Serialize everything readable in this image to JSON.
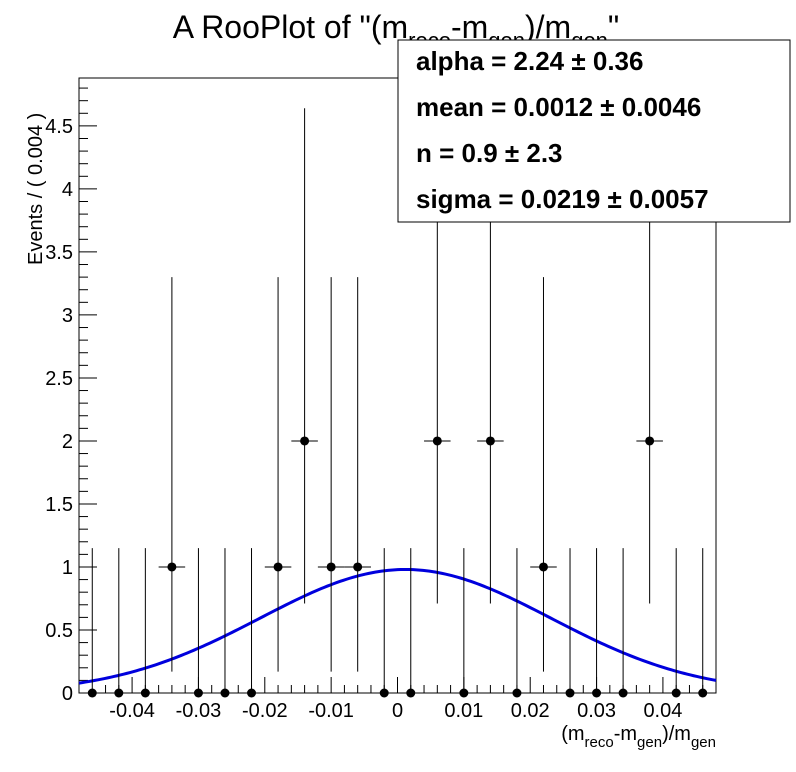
{
  "chart_data": {
    "type": "scatter",
    "title": "A RooPlot of \"(m_reco-m_gen)/m_gen\"",
    "title_parts": {
      "pre": "A RooPlot of \"(m",
      "s1": "reco",
      "mid": "-m",
      "s2": "gen",
      "post": ")/m",
      "s3": "gen",
      "end": "\""
    },
    "xlabel_parts": {
      "pre": "(m",
      "s1": "reco",
      "mid": "-m",
      "s2": "gen",
      "post": ")/m",
      "s3": "gen"
    },
    "ylabel": "Events / ( 0.004 )",
    "xlim": [
      -0.048,
      0.048
    ],
    "ylim": [
      0,
      4.88
    ],
    "xticks": [
      -0.04,
      -0.03,
      -0.02,
      -0.01,
      0,
      0.01,
      0.02,
      0.03,
      0.04
    ],
    "xtick_labels": [
      "-0.04",
      "-0.03",
      "-0.02",
      "-0.01",
      "0",
      "0.01",
      "0.02",
      "0.03",
      "0.04"
    ],
    "yticks": [
      0,
      0.5,
      1,
      1.5,
      2,
      2.5,
      3,
      3.5,
      4,
      4.5
    ],
    "ytick_labels": [
      "0",
      "0.5",
      "1",
      "1.5",
      "2",
      "2.5",
      "3",
      "3.5",
      "4",
      "4.5"
    ],
    "series": [
      {
        "kind": "points",
        "color": "#000000",
        "bin_half_width": 0.002,
        "x": [
          -0.046,
          -0.042,
          -0.038,
          -0.034,
          -0.03,
          -0.026,
          -0.022,
          -0.018,
          -0.014,
          -0.01,
          -0.006,
          -0.002,
          0.002,
          0.006,
          0.01,
          0.014,
          0.018,
          0.022,
          0.026,
          0.03,
          0.034,
          0.038,
          0.042,
          0.046
        ],
        "y": [
          0,
          0,
          0,
          1,
          0,
          0,
          0,
          1,
          2,
          1,
          1,
          0,
          0,
          2,
          0,
          2,
          0,
          1,
          0,
          0,
          0,
          2,
          0,
          0
        ],
        "err_low": [
          0,
          0,
          0,
          0.83,
          0,
          0,
          0,
          0.83,
          1.29,
          0.83,
          0.83,
          0,
          0,
          1.29,
          0,
          1.29,
          0,
          0.83,
          0,
          0,
          0,
          1.29,
          0,
          0
        ],
        "err_high": [
          1.15,
          1.15,
          1.15,
          2.3,
          1.15,
          1.15,
          1.15,
          2.3,
          2.64,
          2.3,
          2.3,
          1.15,
          1.15,
          2.64,
          1.15,
          2.64,
          1.15,
          2.3,
          1.15,
          1.15,
          1.15,
          2.64,
          1.15,
          1.15
        ]
      },
      {
        "kind": "curve",
        "color": "#0000dd",
        "peak": 0.98,
        "mean": 0.0012,
        "sigma": 0.0219
      }
    ],
    "stats_box": {
      "placement": "top-right",
      "lines": [
        {
          "name": "alpha",
          "value": "2.24",
          "error": "0.36"
        },
        {
          "name": "mean",
          "value": "0.0012",
          "error": "0.0046"
        },
        {
          "name": "n",
          "value": "0.9",
          "error": "2.3"
        },
        {
          "name": "sigma",
          "value": "0.0219",
          "error": "0.0057"
        }
      ]
    },
    "grid": false
  }
}
